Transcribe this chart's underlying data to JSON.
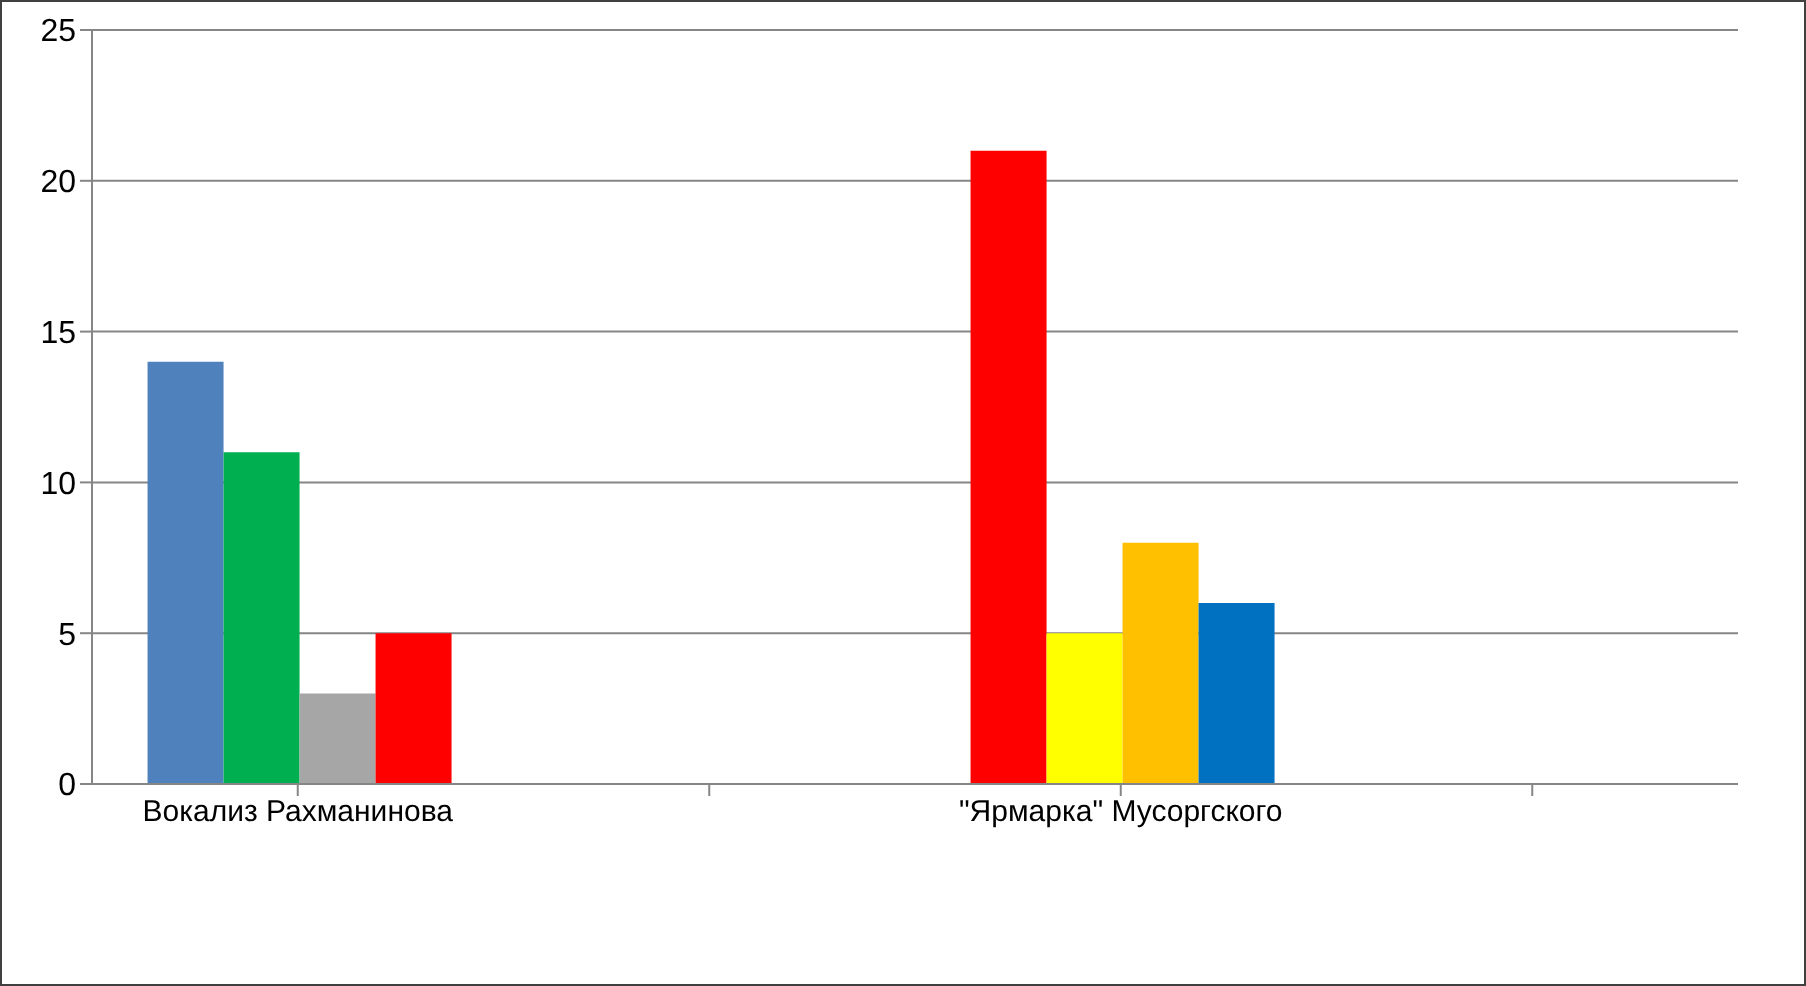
{
  "chart_data": {
    "type": "bar",
    "categories": [
      "Вокализ Рахманинова",
      null,
      "\"Ярмарка\" Мусоргского",
      null
    ],
    "series": [
      {
        "colors": [
          "#4f81bd",
          null,
          "#ff0000",
          null
        ],
        "values": [
          14,
          null,
          21,
          null
        ]
      },
      {
        "colors": [
          "#00b050",
          null,
          "#ffff00",
          null
        ],
        "values": [
          11,
          null,
          5,
          null
        ]
      },
      {
        "colors": [
          "#a6a6a6",
          null,
          "#ffc000",
          null
        ],
        "values": [
          3,
          null,
          8,
          null
        ]
      },
      {
        "colors": [
          "#ff0000",
          null,
          "#0070c0",
          null
        ],
        "values": [
          5,
          null,
          6,
          null
        ]
      }
    ],
    "ylim": [
      0,
      25
    ],
    "yticks": [
      0,
      5,
      10,
      15,
      20,
      25
    ],
    "grid": "y",
    "legend": false
  }
}
